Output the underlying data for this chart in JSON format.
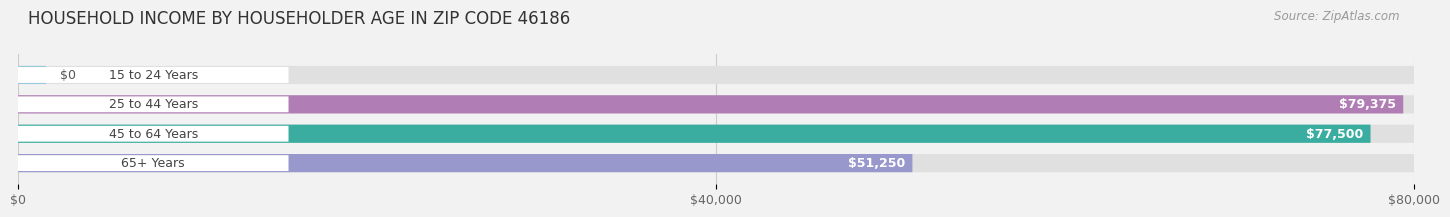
{
  "title": "HOUSEHOLD INCOME BY HOUSEHOLDER AGE IN ZIP CODE 46186",
  "source": "Source: ZipAtlas.com",
  "categories": [
    "15 to 24 Years",
    "25 to 44 Years",
    "45 to 64 Years",
    "65+ Years"
  ],
  "values": [
    0,
    79375,
    77500,
    51250
  ],
  "bar_colors": [
    "#9ec8e0",
    "#b07db5",
    "#3aada0",
    "#9898cc"
  ],
  "value_labels": [
    "$0",
    "$79,375",
    "$77,500",
    "$51,250"
  ],
  "xlim": [
    0,
    80000
  ],
  "xticks": [
    0,
    40000,
    80000
  ],
  "xtick_labels": [
    "$0",
    "$40,000",
    "$80,000"
  ],
  "bar_height": 0.62,
  "background_color": "#f2f2f2",
  "bar_bg_color": "#e0e0e0",
  "label_bg_color": "#ffffff",
  "title_fontsize": 12,
  "label_fontsize": 9,
  "tick_fontsize": 9,
  "source_fontsize": 8.5
}
